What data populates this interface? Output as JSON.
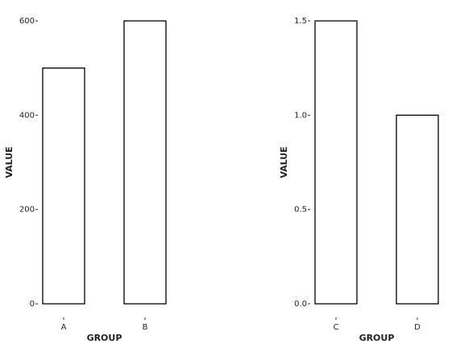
{
  "chart_data": [
    {
      "type": "bar",
      "categories": [
        "A",
        "B"
      ],
      "values": [
        500,
        600
      ],
      "color": "#ffffff",
      "ylim": [
        0,
        600
      ],
      "yticks": [
        0,
        200,
        400,
        600
      ],
      "x_label": "GROUP",
      "y_label": "VALUE"
    },
    {
      "type": "bar",
      "categories": [
        "C",
        "D"
      ],
      "values": [
        1.5,
        1.0
      ],
      "color": "#ffffff",
      "ylim": [
        0,
        1.5
      ],
      "yticks": [
        {
          "value": 0,
          "label": "0.0"
        },
        {
          "value": 0.5,
          "label": "0.5"
        },
        {
          "value": 1,
          "label": "1.0"
        },
        {
          "value": 1.5,
          "label": "1.5"
        }
      ],
      "x_label": "GROUP",
      "y_label": "VALUE"
    }
  ]
}
